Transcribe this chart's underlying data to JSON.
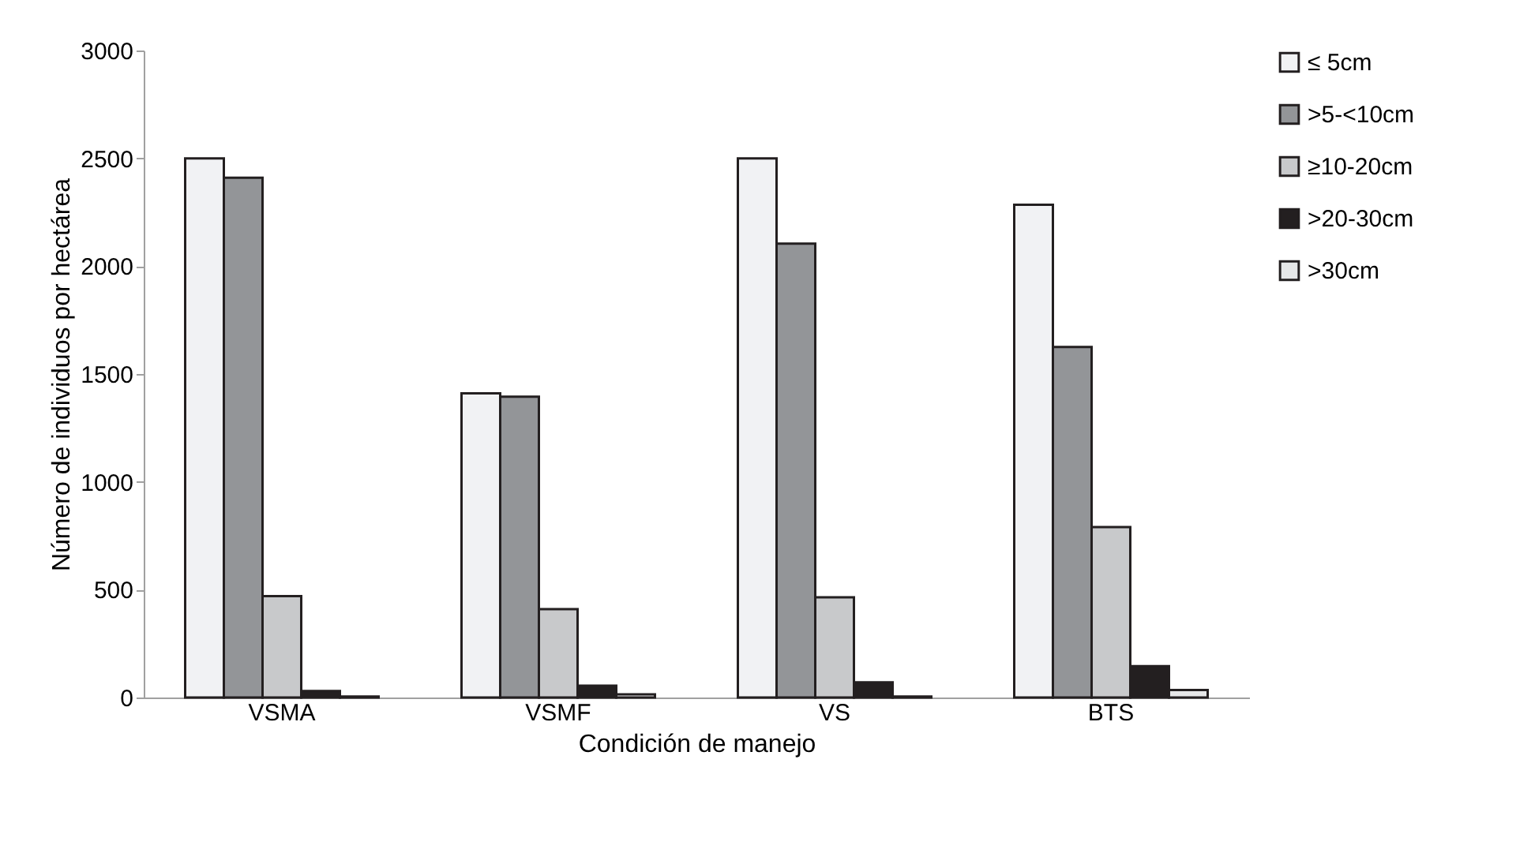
{
  "chart_data": {
    "type": "bar",
    "xlabel": "Condición de manejo",
    "ylabel": "Número de individuos por hectárea",
    "categories": [
      "VSMA",
      "VSMF",
      "VS",
      "BTS"
    ],
    "series": [
      {
        "name": "≤ 5cm",
        "color": "#f1f2f4",
        "values": [
          2500,
          1410,
          2500,
          2285
        ]
      },
      {
        "name": ">5-<10cm",
        "color": "#939598",
        "values": [
          2410,
          1395,
          2105,
          1625
        ]
      },
      {
        "name": "≥10-20cm",
        "color": "#c8c9cb",
        "values": [
          470,
          410,
          465,
          790
        ]
      },
      {
        "name": ">20-30cm",
        "color": "#231f20",
        "values": [
          30,
          55,
          70,
          145
        ]
      },
      {
        "name": ">30cm",
        "color": "#e6e7e8",
        "values": [
          5,
          15,
          5,
          35
        ]
      }
    ],
    "ylim": [
      0,
      3000
    ],
    "yticks": [
      0,
      500,
      1000,
      1500,
      2000,
      2500,
      3000
    ],
    "grid": false,
    "legend": "right"
  }
}
